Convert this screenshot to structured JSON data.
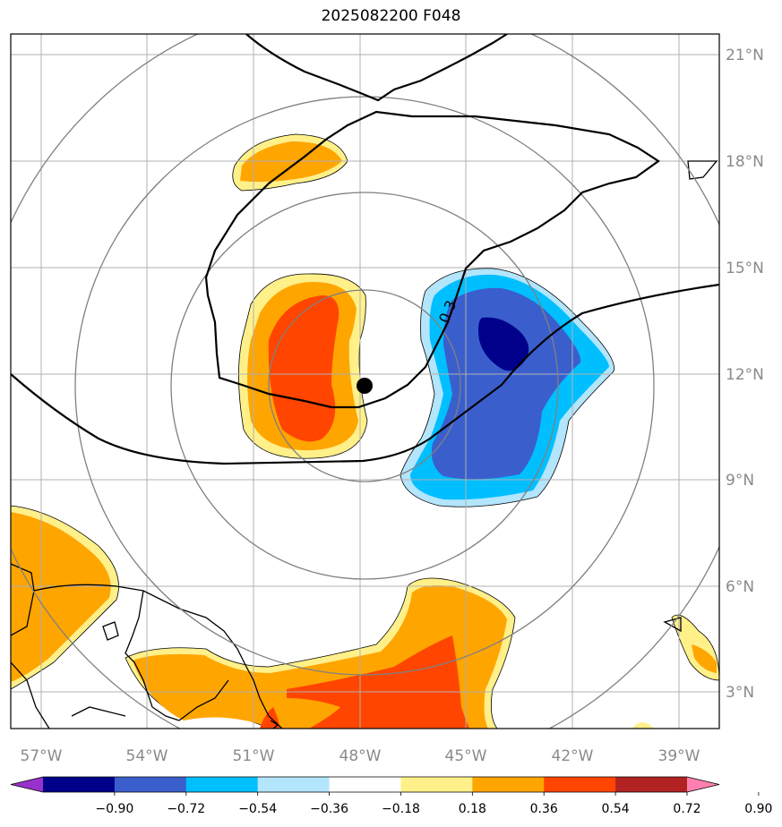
{
  "title": "2025082200 F048",
  "map": {
    "lon_labels": [
      "57°W",
      "54°W",
      "51°W",
      "48°W",
      "45°W",
      "42°W",
      "39°W"
    ],
    "lat_labels": [
      "21°N",
      "18°N",
      "15°N",
      "12°N",
      "9°N",
      "6°N",
      "3°N"
    ],
    "contour_label": "0.3",
    "center_marker": {
      "lon": -48,
      "lat": 11.7
    }
  },
  "colorbar": {
    "labels": [
      "−0.90",
      "−0.72",
      "−0.54",
      "−0.36",
      "−0.18",
      "0.18",
      "0.36",
      "0.54",
      "0.72",
      "0.90"
    ],
    "colors": [
      "#9932cc",
      "#00008b",
      "#3a5fcd",
      "#00bfff",
      "#b3e5fc",
      "#ffffff",
      "#fff08a",
      "#ffa500",
      "#ff4500",
      "#b22222",
      "#ff80b0"
    ]
  }
}
